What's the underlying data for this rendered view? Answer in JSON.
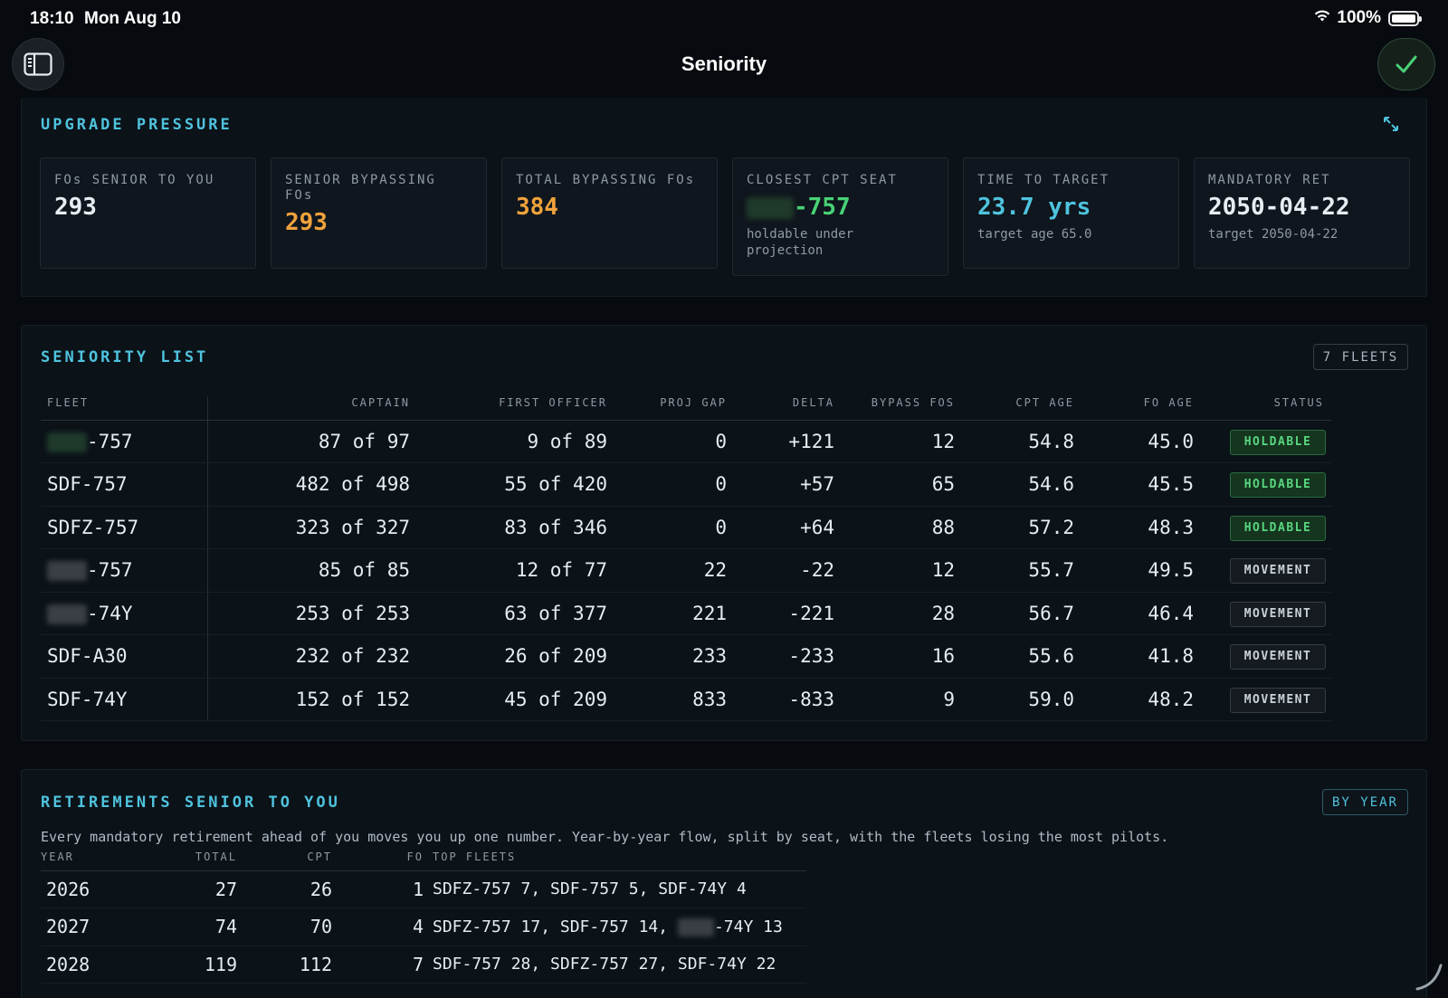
{
  "status_bar": {
    "time": "18:10",
    "date": "Mon Aug 10",
    "battery": "100%"
  },
  "nav": {
    "title": "Seniority"
  },
  "upgrade_pressure": {
    "title": "UPGRADE PRESSURE",
    "cards": [
      {
        "label": "FOs SENIOR TO YOU",
        "value": "293",
        "sub": ""
      },
      {
        "label": "SENIOR BYPASSING FOs",
        "value": "293",
        "sub": ""
      },
      {
        "label": "TOTAL BYPASSING FOs",
        "value": "384",
        "sub": ""
      },
      {
        "label": "CLOSEST CPT SEAT",
        "value": "-757",
        "sub": "holdable under projection"
      },
      {
        "label": "TIME TO TARGET",
        "value": "23.7 yrs",
        "sub": "target age 65.0"
      },
      {
        "label": "MANDATORY RET",
        "value": "2050-04-22",
        "sub": "target 2050-04-22"
      }
    ]
  },
  "seniority_list": {
    "title": "SENIORITY LIST",
    "fleet_count": "7 FLEETS",
    "columns": [
      "FLEET",
      "CAPTAIN",
      "FIRST OFFICER",
      "PROJ GAP",
      "DELTA",
      "BYPASS FOS",
      "CPT AGE",
      "FO AGE",
      "STATUS"
    ],
    "rows": [
      {
        "fleet": "-757",
        "captain": "87 of 97",
        "fo": "9 of 89",
        "gap": "0",
        "delta": "+121",
        "bypass": "12",
        "cpt_age": "54.8",
        "fo_age": "45.0",
        "status": "HOLDABLE"
      },
      {
        "fleet": "SDF-757",
        "captain": "482 of 498",
        "fo": "55 of 420",
        "gap": "0",
        "delta": "+57",
        "bypass": "65",
        "cpt_age": "54.6",
        "fo_age": "45.5",
        "status": "HOLDABLE"
      },
      {
        "fleet": "SDFZ-757",
        "captain": "323 of 327",
        "fo": "83 of 346",
        "gap": "0",
        "delta": "+64",
        "bypass": "88",
        "cpt_age": "57.2",
        "fo_age": "48.3",
        "status": "HOLDABLE"
      },
      {
        "fleet": "-757",
        "captain": "85 of 85",
        "fo": "12 of 77",
        "gap": "22",
        "delta": "-22",
        "bypass": "12",
        "cpt_age": "55.7",
        "fo_age": "49.5",
        "status": "MOVEMENT"
      },
      {
        "fleet": "-74Y",
        "captain": "253 of 253",
        "fo": "63 of 377",
        "gap": "221",
        "delta": "-221",
        "bypass": "28",
        "cpt_age": "56.7",
        "fo_age": "46.4",
        "status": "MOVEMENT"
      },
      {
        "fleet": "SDF-A30",
        "captain": "232 of 232",
        "fo": "26 of 209",
        "gap": "233",
        "delta": "-233",
        "bypass": "16",
        "cpt_age": "55.6",
        "fo_age": "41.8",
        "status": "MOVEMENT"
      },
      {
        "fleet": "SDF-74Y",
        "captain": "152 of 152",
        "fo": "45 of 209",
        "gap": "833",
        "delta": "-833",
        "bypass": "9",
        "cpt_age": "59.0",
        "fo_age": "48.2",
        "status": "MOVEMENT"
      }
    ]
  },
  "retirements": {
    "title": "RETIREMENTS SENIOR TO YOU",
    "mode_button": "BY YEAR",
    "description": "Every mandatory retirement ahead of you moves you up one number. Year-by-year flow, split by seat, with the fleets losing the most pilots.",
    "columns": [
      "YEAR",
      "TOTAL",
      "CPT",
      "FO",
      "TOP FLEETS"
    ],
    "rows": [
      {
        "year": "2026",
        "total": "27",
        "cpt": "26",
        "fo": "1",
        "top_fleets": "SDFZ-757 7, SDF-757 5, SDF-74Y 4"
      },
      {
        "year": "2027",
        "total": "74",
        "cpt": "70",
        "fo": "4",
        "top_fleets_a": "SDFZ-757 17, SDF-757 14,",
        "top_fleets_b": "-74Y 13"
      },
      {
        "year": "2028",
        "total": "119",
        "cpt": "112",
        "fo": "7",
        "top_fleets": "SDF-757 28, SDFZ-757 27, SDF-74Y 22"
      }
    ]
  },
  "colors": {
    "accent": "#4fc3de",
    "holdable": "#48d276",
    "warning": "#f0a23c",
    "background": "#070b10"
  }
}
